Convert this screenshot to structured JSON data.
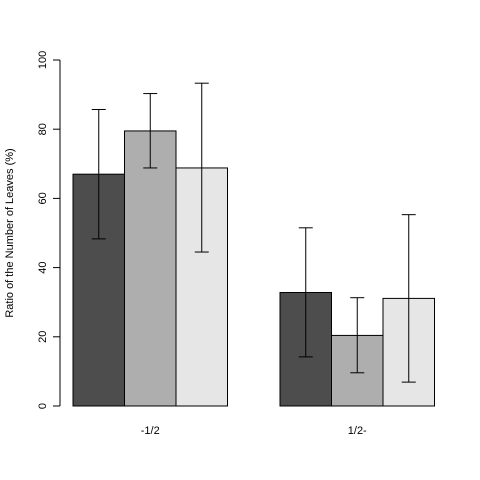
{
  "chart_data": {
    "type": "bar",
    "ylabel": "Ratio of the Number of Leaves (%)",
    "xlabel": "",
    "ylim": [
      0,
      100
    ],
    "yticks": [
      0,
      20,
      40,
      60,
      80,
      100
    ],
    "categories": [
      "-1/2",
      "1/2-"
    ],
    "grid": false,
    "legend": "none",
    "series": [
      {
        "color": "#4d4d4d",
        "values": [
          67.0,
          32.8
        ],
        "err_low": [
          48.3,
          14.2
        ],
        "err_high": [
          85.7,
          51.5
        ]
      },
      {
        "color": "#aeaeae",
        "values": [
          79.5,
          20.4
        ],
        "err_low": [
          68.8,
          9.6
        ],
        "err_high": [
          90.3,
          31.3
        ]
      },
      {
        "color": "#e6e6e6",
        "values": [
          68.8,
          31.1
        ],
        "err_low": [
          44.5,
          6.9
        ],
        "err_high": [
          93.3,
          55.3
        ]
      }
    ]
  }
}
